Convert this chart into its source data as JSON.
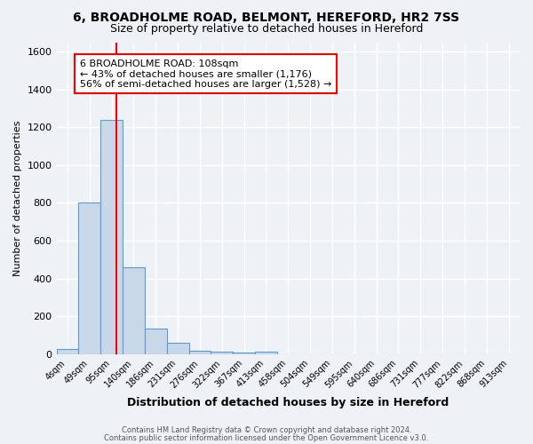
{
  "title": "6, BROADHOLME ROAD, BELMONT, HEREFORD, HR2 7SS",
  "subtitle": "Size of property relative to detached houses in Hereford",
  "xlabel": "Distribution of detached houses by size in Hereford",
  "ylabel": "Number of detached properties",
  "footnote1": "Contains HM Land Registry data © Crown copyright and database right 2024.",
  "footnote2": "Contains public sector information licensed under the Open Government Licence v3.0.",
  "bin_labels": [
    "4sqm",
    "49sqm",
    "95sqm",
    "140sqm",
    "186sqm",
    "231sqm",
    "276sqm",
    "322sqm",
    "367sqm",
    "413sqm",
    "458sqm",
    "504sqm",
    "549sqm",
    "595sqm",
    "640sqm",
    "686sqm",
    "731sqm",
    "777sqm",
    "822sqm",
    "868sqm",
    "913sqm"
  ],
  "bar_heights": [
    25,
    800,
    1240,
    460,
    135,
    60,
    20,
    15,
    10,
    12,
    0,
    0,
    0,
    0,
    0,
    0,
    0,
    0,
    0,
    0,
    0
  ],
  "bar_color": "#c8d8e8",
  "bar_edge_color": "#5b9bd5",
  "red_line_x": 2.2,
  "annotation_line1": "6 BROADHOLME ROAD: 108sqm",
  "annotation_line2": "← 43% of detached houses are smaller (1,176)",
  "annotation_line3": "56% of semi-detached houses are larger (1,528) →",
  "ylim": [
    0,
    1650
  ],
  "yticks": [
    0,
    200,
    400,
    600,
    800,
    1000,
    1200,
    1400,
    1600
  ],
  "background_color": "#eef2f7",
  "grid_color": "#ffffff",
  "title_fontsize": 10,
  "subtitle_fontsize": 9,
  "annot_fontsize": 8
}
